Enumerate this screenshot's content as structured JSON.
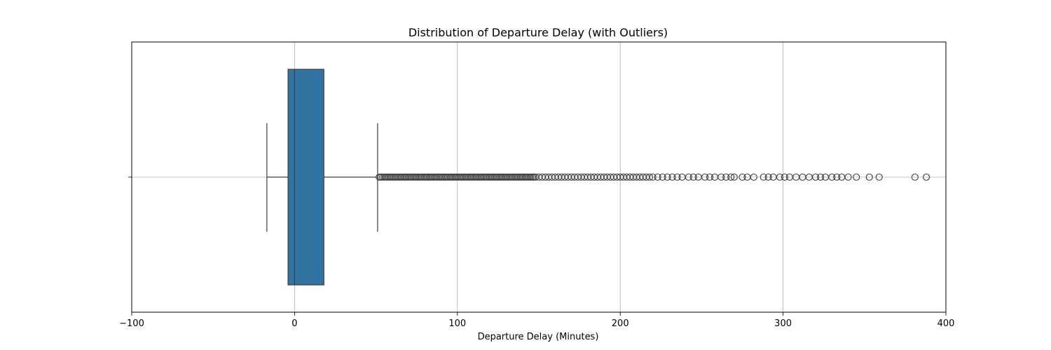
{
  "chart_data": {
    "type": "boxplot",
    "title": "Distribution of Departure Delay (with Outliers)",
    "xlabel": "Departure Delay (Minutes)",
    "ylabel": "",
    "xlim": [
      -100,
      400
    ],
    "x_ticks": [
      -100,
      0,
      100,
      200,
      300,
      400
    ],
    "grid": true,
    "orientation": "horizontal",
    "box": {
      "whisker_low": -17,
      "q1": -4,
      "median": 0,
      "q3": 18,
      "whisker_high": 51,
      "color": "#3274a1",
      "edge_color": "#3d3d3d"
    },
    "outliers": [
      52,
      53,
      54,
      55,
      56,
      57,
      58,
      59,
      60,
      61,
      62,
      63,
      64,
      65,
      66,
      67,
      68,
      69,
      70,
      71,
      72,
      73,
      74,
      75,
      76,
      77,
      78,
      79,
      80,
      81,
      82,
      83,
      84,
      85,
      86,
      87,
      88,
      89,
      90,
      91,
      92,
      93,
      94,
      95,
      96,
      97,
      98,
      99,
      100,
      101,
      102,
      103,
      104,
      105,
      106,
      107,
      108,
      109,
      110,
      111,
      112,
      113,
      114,
      115,
      116,
      117,
      118,
      119,
      120,
      121,
      122,
      123,
      124,
      125,
      126,
      127,
      128,
      129,
      130,
      131,
      132,
      133,
      134,
      135,
      136,
      137,
      138,
      139,
      140,
      141,
      142,
      143,
      144,
      145,
      146,
      147,
      148,
      150,
      152,
      154,
      156,
      158,
      160,
      162,
      164,
      166,
      168,
      170,
      172,
      174,
      176,
      178,
      180,
      182,
      184,
      186,
      188,
      190,
      192,
      194,
      196,
      198,
      200,
      202,
      204,
      206,
      208,
      210,
      212,
      214,
      216,
      218,
      220,
      223,
      226,
      229,
      232,
      235,
      238,
      242,
      245,
      248,
      252,
      255,
      258,
      262,
      265,
      268,
      270,
      275,
      278,
      282,
      288,
      291,
      294,
      298,
      301,
      304,
      308,
      312,
      316,
      320,
      323,
      326,
      330,
      333,
      336,
      340,
      345,
      353,
      359,
      381,
      388
    ]
  }
}
